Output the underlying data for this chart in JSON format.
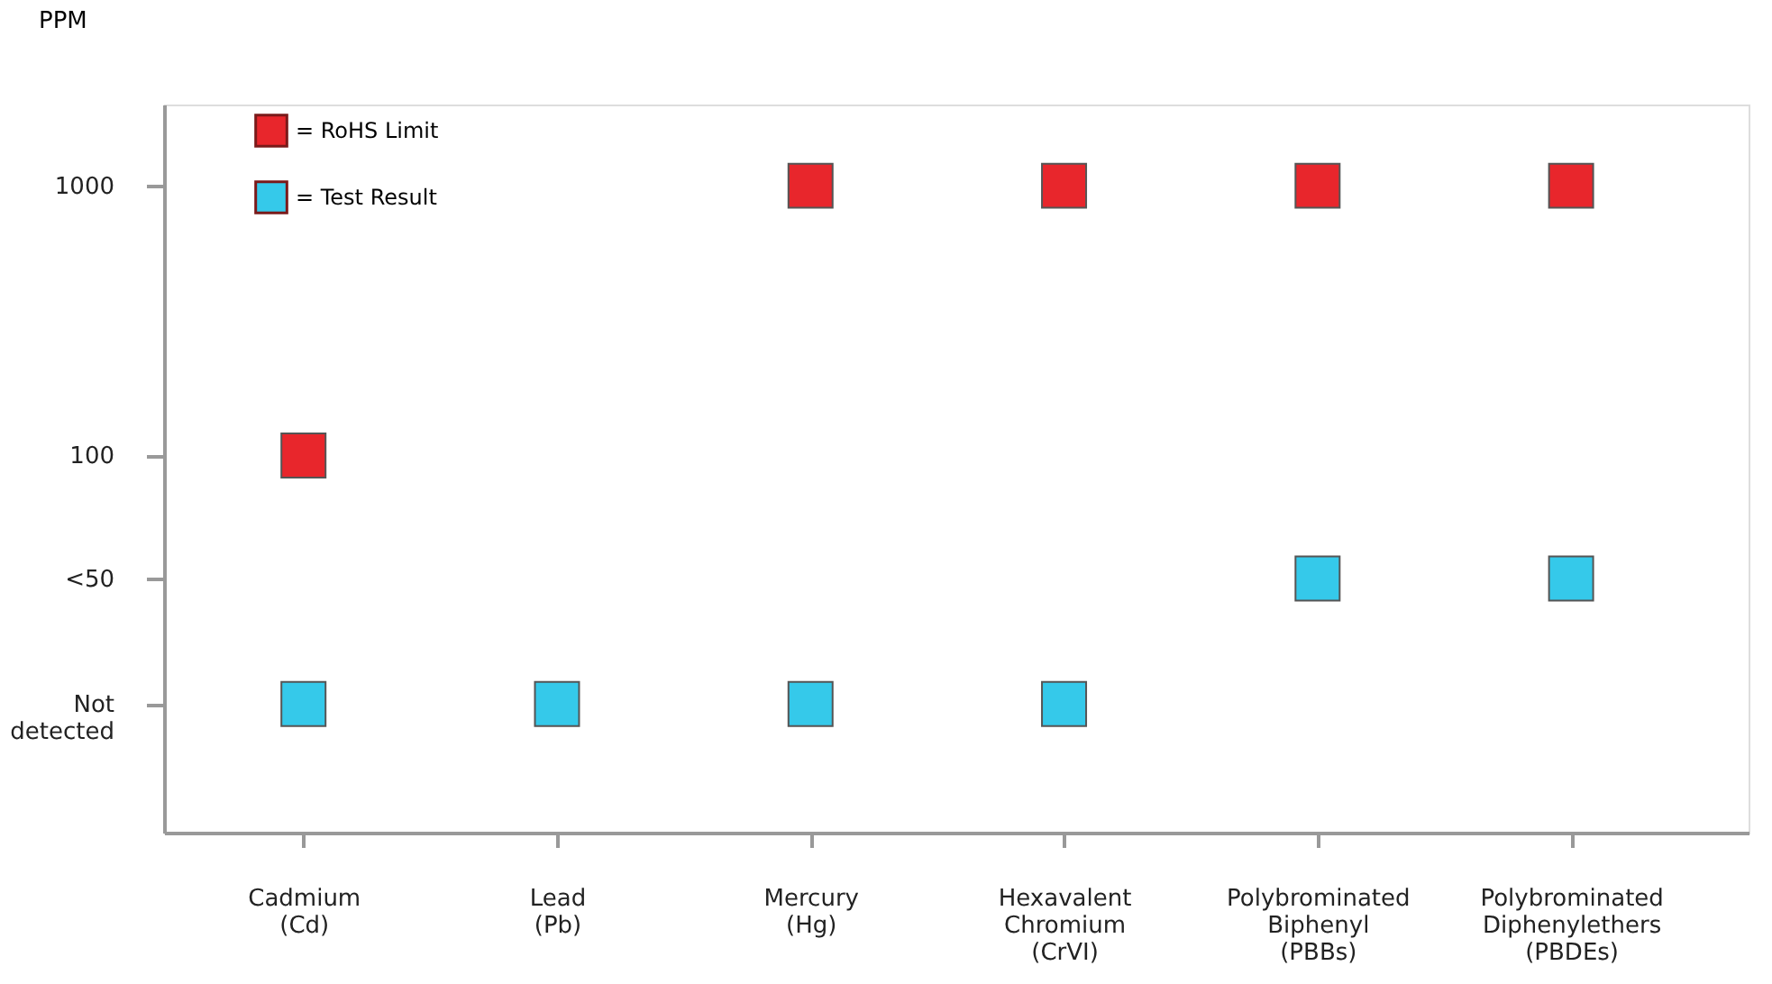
{
  "chart_data": {
    "type": "scatter",
    "ylabel": "PPM",
    "log": true,
    "marker": "square",
    "grid": false,
    "legend": "top left",
    "categories": [
      "Cadmium\n(Cd)",
      "Lead\n(Pb)",
      "Mercury\n(Hg)",
      "Hexavalent\nChromium\n(CrVI)",
      "Polybrominated\nBiphenyl\n(PBBs)",
      "Polybrominated\nDiphenylethers\n(PBDEs)"
    ],
    "ylim": [
      4,
      2000
    ],
    "yticks": [
      {
        "value": 12,
        "label": "Not\ndetected"
      },
      {
        "value": 35,
        "label": "<50"
      },
      100,
      1000
    ],
    "series": [
      {
        "name": "= RoHS Limit",
        "color": "#e8262c",
        "values": [
          100,
          null,
          1000,
          1000,
          1000,
          1000
        ]
      },
      {
        "name": "= Test Result",
        "color": "#35c9ea",
        "values": [
          12,
          12,
          12,
          12,
          35,
          35
        ]
      }
    ]
  }
}
